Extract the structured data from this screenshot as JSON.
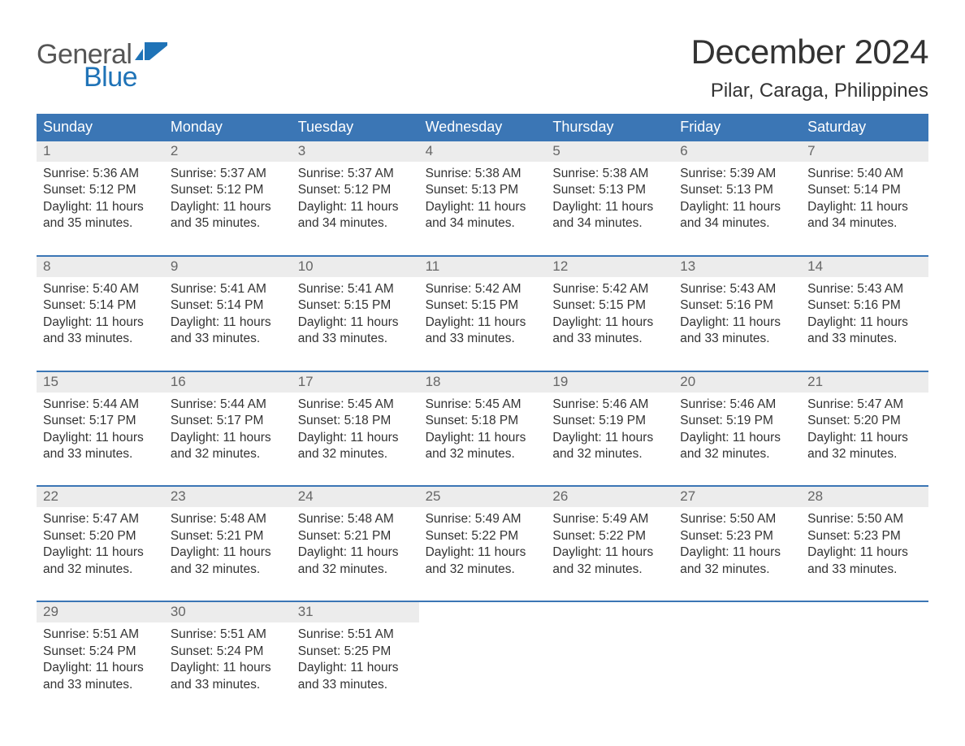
{
  "brand": {
    "word1": "General",
    "word2": "Blue",
    "text_color_gray": "#565656",
    "text_color_blue": "#1f73b7",
    "icon_color": "#1f73b7"
  },
  "title": "December 2024",
  "location": "Pilar, Caraga, Philippines",
  "colors": {
    "header_bg": "#3b76b5",
    "header_text": "#ffffff",
    "daynum_bg": "#ececec",
    "daynum_text": "#666666",
    "body_text": "#333333",
    "week_border": "#3b76b5",
    "page_bg": "#ffffff"
  },
  "typography": {
    "title_fontsize": 42,
    "location_fontsize": 24,
    "weekday_fontsize": 18,
    "daynum_fontsize": 17,
    "info_fontsize": 15.5,
    "logo_fontsize": 34,
    "font_family": "Arial"
  },
  "weekdays": [
    "Sunday",
    "Monday",
    "Tuesday",
    "Wednesday",
    "Thursday",
    "Friday",
    "Saturday"
  ],
  "weeks": [
    [
      {
        "num": "1",
        "sunrise": "5:36 AM",
        "sunset": "5:12 PM",
        "daylight": "11 hours and 35 minutes."
      },
      {
        "num": "2",
        "sunrise": "5:37 AM",
        "sunset": "5:12 PM",
        "daylight": "11 hours and 35 minutes."
      },
      {
        "num": "3",
        "sunrise": "5:37 AM",
        "sunset": "5:12 PM",
        "daylight": "11 hours and 34 minutes."
      },
      {
        "num": "4",
        "sunrise": "5:38 AM",
        "sunset": "5:13 PM",
        "daylight": "11 hours and 34 minutes."
      },
      {
        "num": "5",
        "sunrise": "5:38 AM",
        "sunset": "5:13 PM",
        "daylight": "11 hours and 34 minutes."
      },
      {
        "num": "6",
        "sunrise": "5:39 AM",
        "sunset": "5:13 PM",
        "daylight": "11 hours and 34 minutes."
      },
      {
        "num": "7",
        "sunrise": "5:40 AM",
        "sunset": "5:14 PM",
        "daylight": "11 hours and 34 minutes."
      }
    ],
    [
      {
        "num": "8",
        "sunrise": "5:40 AM",
        "sunset": "5:14 PM",
        "daylight": "11 hours and 33 minutes."
      },
      {
        "num": "9",
        "sunrise": "5:41 AM",
        "sunset": "5:14 PM",
        "daylight": "11 hours and 33 minutes."
      },
      {
        "num": "10",
        "sunrise": "5:41 AM",
        "sunset": "5:15 PM",
        "daylight": "11 hours and 33 minutes."
      },
      {
        "num": "11",
        "sunrise": "5:42 AM",
        "sunset": "5:15 PM",
        "daylight": "11 hours and 33 minutes."
      },
      {
        "num": "12",
        "sunrise": "5:42 AM",
        "sunset": "5:15 PM",
        "daylight": "11 hours and 33 minutes."
      },
      {
        "num": "13",
        "sunrise": "5:43 AM",
        "sunset": "5:16 PM",
        "daylight": "11 hours and 33 minutes."
      },
      {
        "num": "14",
        "sunrise": "5:43 AM",
        "sunset": "5:16 PM",
        "daylight": "11 hours and 33 minutes."
      }
    ],
    [
      {
        "num": "15",
        "sunrise": "5:44 AM",
        "sunset": "5:17 PM",
        "daylight": "11 hours and 33 minutes."
      },
      {
        "num": "16",
        "sunrise": "5:44 AM",
        "sunset": "5:17 PM",
        "daylight": "11 hours and 32 minutes."
      },
      {
        "num": "17",
        "sunrise": "5:45 AM",
        "sunset": "5:18 PM",
        "daylight": "11 hours and 32 minutes."
      },
      {
        "num": "18",
        "sunrise": "5:45 AM",
        "sunset": "5:18 PM",
        "daylight": "11 hours and 32 minutes."
      },
      {
        "num": "19",
        "sunrise": "5:46 AM",
        "sunset": "5:19 PM",
        "daylight": "11 hours and 32 minutes."
      },
      {
        "num": "20",
        "sunrise": "5:46 AM",
        "sunset": "5:19 PM",
        "daylight": "11 hours and 32 minutes."
      },
      {
        "num": "21",
        "sunrise": "5:47 AM",
        "sunset": "5:20 PM",
        "daylight": "11 hours and 32 minutes."
      }
    ],
    [
      {
        "num": "22",
        "sunrise": "5:47 AM",
        "sunset": "5:20 PM",
        "daylight": "11 hours and 32 minutes."
      },
      {
        "num": "23",
        "sunrise": "5:48 AM",
        "sunset": "5:21 PM",
        "daylight": "11 hours and 32 minutes."
      },
      {
        "num": "24",
        "sunrise": "5:48 AM",
        "sunset": "5:21 PM",
        "daylight": "11 hours and 32 minutes."
      },
      {
        "num": "25",
        "sunrise": "5:49 AM",
        "sunset": "5:22 PM",
        "daylight": "11 hours and 32 minutes."
      },
      {
        "num": "26",
        "sunrise": "5:49 AM",
        "sunset": "5:22 PM",
        "daylight": "11 hours and 32 minutes."
      },
      {
        "num": "27",
        "sunrise": "5:50 AM",
        "sunset": "5:23 PM",
        "daylight": "11 hours and 32 minutes."
      },
      {
        "num": "28",
        "sunrise": "5:50 AM",
        "sunset": "5:23 PM",
        "daylight": "11 hours and 33 minutes."
      }
    ],
    [
      {
        "num": "29",
        "sunrise": "5:51 AM",
        "sunset": "5:24 PM",
        "daylight": "11 hours and 33 minutes."
      },
      {
        "num": "30",
        "sunrise": "5:51 AM",
        "sunset": "5:24 PM",
        "daylight": "11 hours and 33 minutes."
      },
      {
        "num": "31",
        "sunrise": "5:51 AM",
        "sunset": "5:25 PM",
        "daylight": "11 hours and 33 minutes."
      },
      null,
      null,
      null,
      null
    ]
  ],
  "labels": {
    "sunrise": "Sunrise",
    "sunset": "Sunset",
    "daylight": "Daylight"
  }
}
